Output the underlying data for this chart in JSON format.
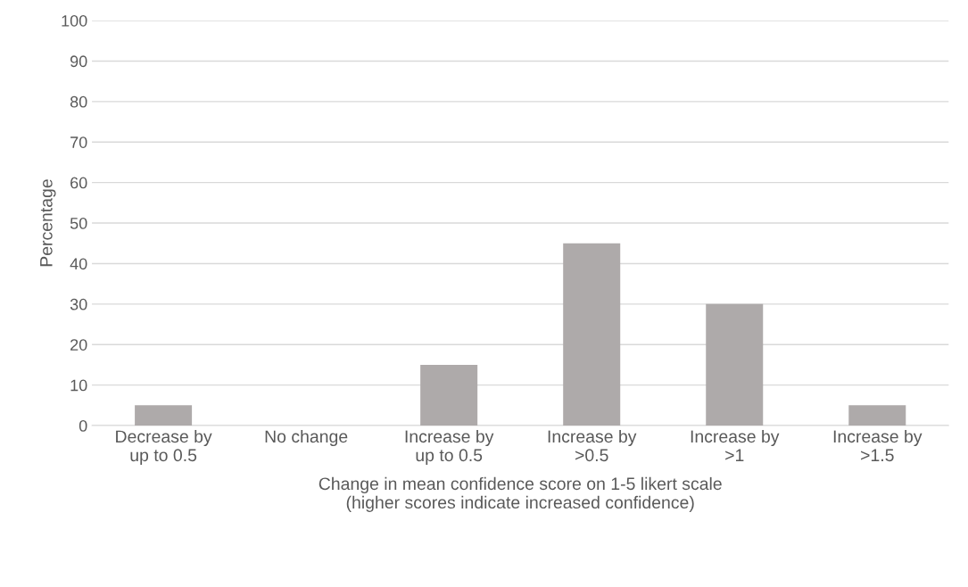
{
  "chart_data": {
    "type": "bar",
    "ylabel": "Percentage",
    "xlabel": "Change in mean confidence score on 1-5 likert scale\n(higher scores indicate increased confidence)",
    "categories": [
      "Decrease by\nup to 0.5",
      "No change",
      "Increase by\nup to 0.5",
      "Increase by\n>0.5",
      "Increase by\n>1",
      "Increase by\n>1.5"
    ],
    "values": [
      5,
      0,
      15,
      45,
      30,
      5
    ],
    "color": "#aeaaaa",
    "ylim": [
      0,
      100
    ],
    "yticks": [
      0,
      10,
      20,
      30,
      40,
      50,
      60,
      70,
      80,
      90,
      100
    ],
    "grid": "y"
  }
}
